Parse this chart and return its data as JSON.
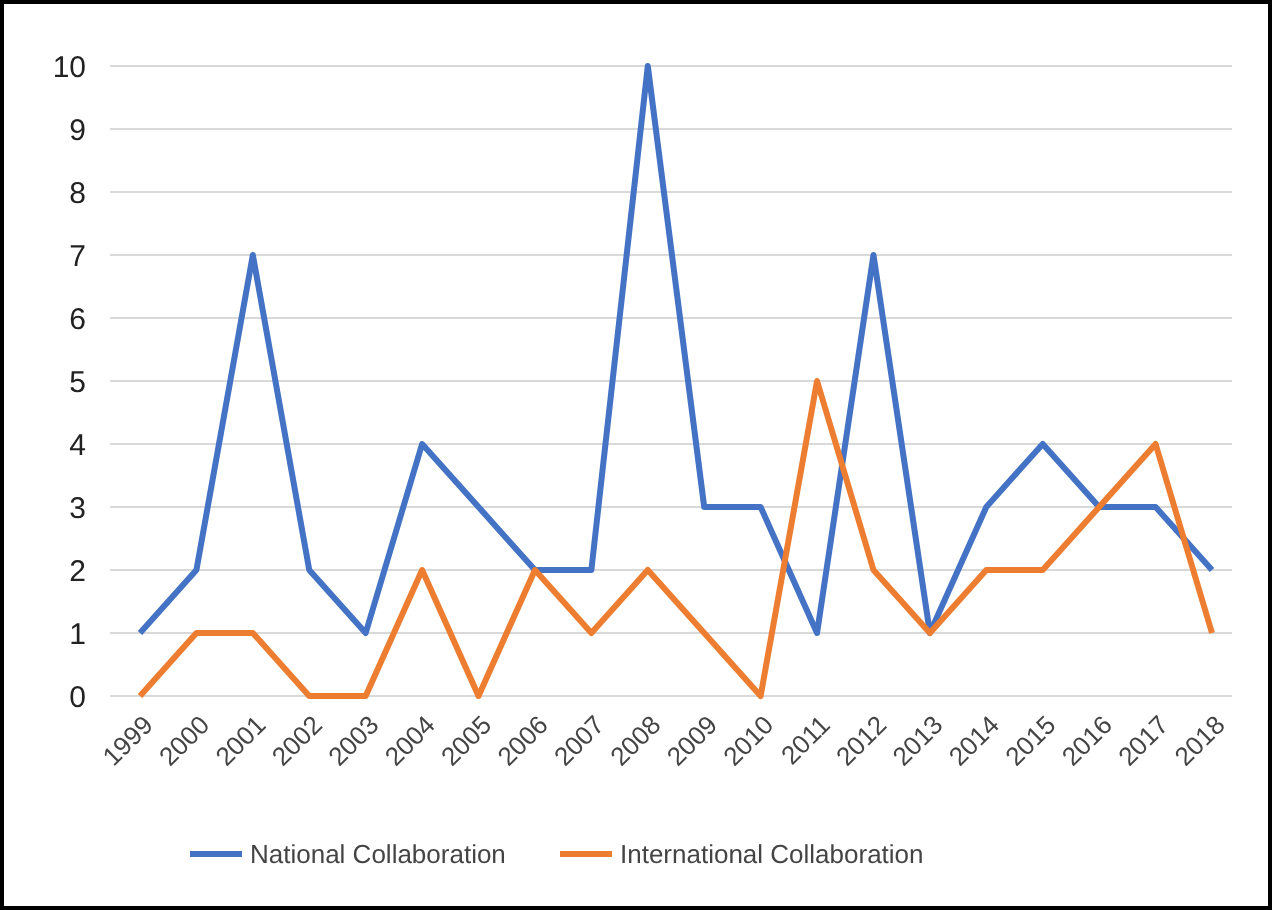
{
  "chart_data": {
    "type": "line",
    "categories": [
      "1999",
      "2000",
      "2001",
      "2002",
      "2003",
      "2004",
      "2005",
      "2006",
      "2007",
      "2008",
      "2009",
      "2010",
      "2011",
      "2012",
      "2013",
      "2014",
      "2015",
      "2016",
      "2017",
      "2018"
    ],
    "series": [
      {
        "name": "National Collaboration",
        "color": "#4472c4",
        "values": [
          1,
          2,
          7,
          2,
          1,
          4,
          3,
          2,
          2,
          10,
          3,
          3,
          1,
          7,
          1,
          3,
          4,
          3,
          3,
          2
        ]
      },
      {
        "name": "International Collaboration",
        "color": "#ed7d31",
        "values": [
          0,
          1,
          1,
          0,
          0,
          2,
          0,
          2,
          1,
          2,
          1,
          0,
          5,
          2,
          1,
          2,
          2,
          3,
          4,
          1
        ]
      }
    ],
    "ylim": [
      0,
      10
    ],
    "yticks": [
      0,
      1,
      2,
      3,
      4,
      5,
      6,
      7,
      8,
      9,
      10
    ],
    "grid": "y",
    "legend": "bottom",
    "marker": "none",
    "line_style": "solid"
  }
}
